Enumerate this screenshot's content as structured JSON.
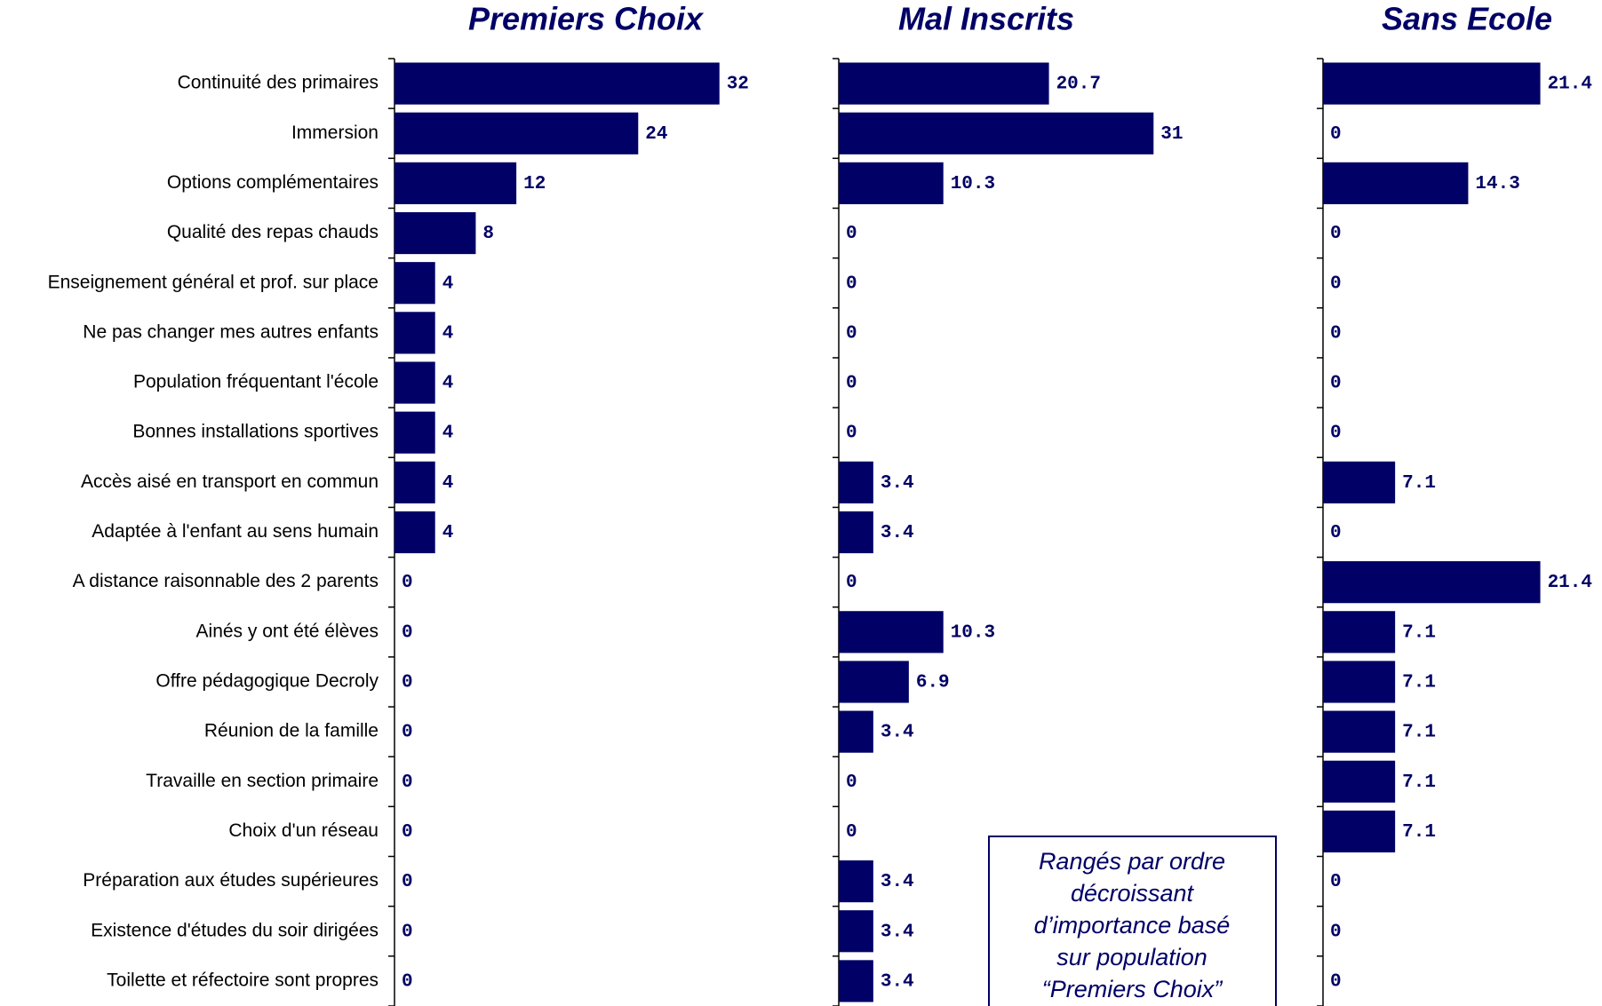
{
  "chart_data": [
    {
      "type": "bar",
      "orientation": "horizontal",
      "title": "Premiers Choix",
      "color": "#000066",
      "categories": [
        "Continuité des primaires",
        "Immersion",
        "Options complémentaires",
        "Qualité des repas chauds",
        "Enseignement général et prof. sur place",
        "Ne pas changer mes autres enfants",
        "Population fréquentant l'école",
        "Bonnes installations sportives",
        "Accès aisé en transport en commun",
        "Adaptée à l'enfant au sens humain",
        "A distance raisonnable des 2 parents",
        "Ainés y ont été élèves",
        "Offre pédagogique Decroly",
        "Réunion de la famille",
        "Travaille en section primaire",
        "Choix d'un réseau",
        "Préparation aux études supérieures",
        "Existence d'études du soir dirigées",
        "Toilette et réfectoire sont propres"
      ],
      "values": [
        32,
        24,
        12,
        8,
        4,
        4,
        4,
        4,
        4,
        4,
        0,
        0,
        0,
        0,
        0,
        0,
        0,
        0,
        0
      ],
      "xlim": [
        0,
        35
      ]
    },
    {
      "type": "bar",
      "orientation": "horizontal",
      "title": "Mal Inscrits",
      "color": "#000066",
      "values": [
        20.7,
        31,
        10.3,
        0,
        0,
        0,
        0,
        0,
        3.4,
        3.4,
        0,
        10.3,
        6.9,
        3.4,
        0,
        0,
        3.4,
        3.4,
        3.4
      ],
      "xlim": [
        0,
        35
      ],
      "annotation": [
        "Rangés par ordre",
        "décroissant",
        "d’importance basé",
        "sur population",
        "“Premiers Choix”"
      ]
    },
    {
      "type": "bar",
      "orientation": "horizontal",
      "title": "Sans Ecole",
      "color": "#000066",
      "values": [
        21.4,
        0,
        14.3,
        0,
        0,
        0,
        0,
        0,
        7.1,
        0,
        21.4,
        7.1,
        7.1,
        7.1,
        7.1,
        7.1,
        0,
        0,
        0
      ],
      "xlim": [
        0,
        35
      ]
    }
  ]
}
